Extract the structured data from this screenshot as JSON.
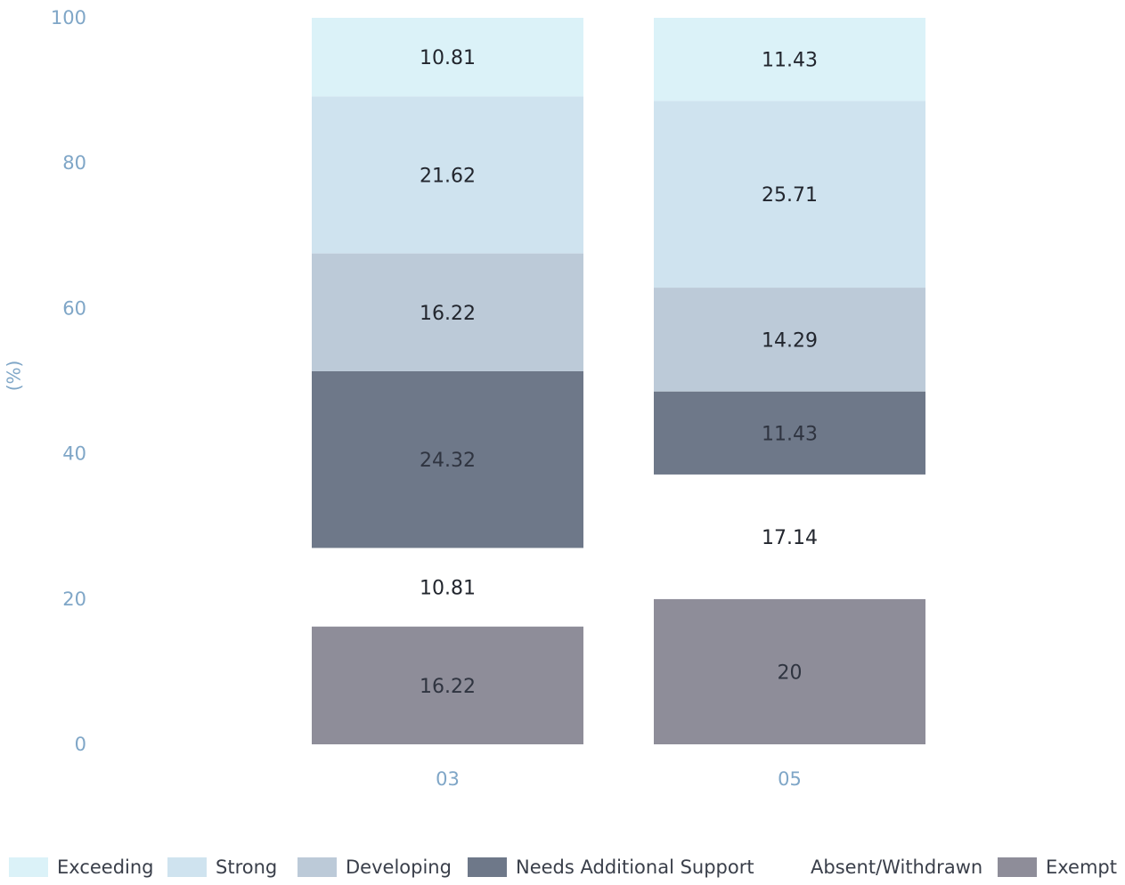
{
  "chart_data": {
    "type": "bar",
    "stacked": true,
    "categories": [
      "03",
      "05"
    ],
    "ylabel": "(%)",
    "ylim": [
      0,
      100
    ],
    "yticks": [
      0,
      20,
      40,
      60,
      80,
      100
    ],
    "legend_position": "bottom",
    "series": [
      {
        "name": "Exempt",
        "values": [
          16.22,
          20
        ],
        "color": "#8e8d99"
      },
      {
        "name": "Absent/Withdrawn",
        "values": [
          10.81,
          17.14
        ],
        "color": "#ffffff"
      },
      {
        "name": "Needs Additional Support",
        "values": [
          24.32,
          11.43
        ],
        "color": "#6e7889"
      },
      {
        "name": "Developing",
        "values": [
          16.22,
          14.29
        ],
        "color": "#bccad8"
      },
      {
        "name": "Strong",
        "values": [
          21.62,
          25.71
        ],
        "color": "#cfe3ef"
      },
      {
        "name": "Exceeding",
        "values": [
          10.81,
          11.43
        ],
        "color": "#dbf2f8"
      }
    ],
    "legend": [
      {
        "name": "Exceeding",
        "color": "#dbf2f8",
        "swatch": true
      },
      {
        "name": "Strong",
        "color": "#cfe3ef",
        "swatch": true
      },
      {
        "name": "Developing",
        "color": "#bccad8",
        "swatch": true
      },
      {
        "name": "Needs Additional Support",
        "color": "#6e7889",
        "swatch": true
      },
      {
        "name": "Absent/Withdrawn",
        "color": "#ffffff",
        "swatch": false
      },
      {
        "name": "Exempt",
        "color": "#8e8d99",
        "swatch": true
      }
    ]
  }
}
